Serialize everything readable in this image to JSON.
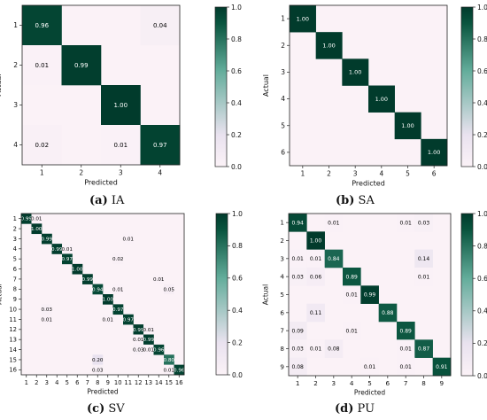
{
  "colormap": {
    "zero": "#fbf2f7",
    "low": "#e9e2ef",
    "mid": "#63ad9b",
    "high": "#09543e",
    "max": "#013b2c",
    "diag_text": "#ffffff",
    "off_text": "#000000"
  },
  "chart_data": [
    {
      "id": "IA",
      "type": "heatmap",
      "caption_label": "(a)",
      "caption_text": "IA",
      "xlabel": "Predicted",
      "ylabel": "Actual",
      "classes": [
        "1",
        "2",
        "3",
        "4"
      ],
      "colorbar_ticks": [
        "0.0",
        "0.2",
        "0.4",
        "0.6",
        "0.8",
        "1.0"
      ],
      "vmin": 0,
      "vmax": 1,
      "cells": [
        {
          "r": 0,
          "c": 0,
          "v": 0.96,
          "label": "0.96"
        },
        {
          "r": 0,
          "c": 3,
          "v": 0.04,
          "label": "0.04"
        },
        {
          "r": 1,
          "c": 0,
          "v": 0.01,
          "label": "0.01"
        },
        {
          "r": 1,
          "c": 1,
          "v": 0.99,
          "label": "0.99"
        },
        {
          "r": 2,
          "c": 2,
          "v": 1.0,
          "label": "1.00"
        },
        {
          "r": 3,
          "c": 0,
          "v": 0.02,
          "label": "0.02"
        },
        {
          "r": 3,
          "c": 2,
          "v": 0.01,
          "label": "0.01"
        },
        {
          "r": 3,
          "c": 3,
          "v": 0.97,
          "label": "0.97"
        }
      ]
    },
    {
      "id": "SA",
      "type": "heatmap",
      "caption_label": "(b)",
      "caption_text": "SA",
      "xlabel": "Predicted",
      "ylabel": "Actual",
      "classes": [
        "1",
        "2",
        "3",
        "4",
        "5",
        "6"
      ],
      "colorbar_ticks": [
        "0.0",
        "0.2",
        "0.4",
        "0.6",
        "0.8",
        "1.0"
      ],
      "vmin": 0,
      "vmax": 1,
      "cells": [
        {
          "r": 0,
          "c": 0,
          "v": 1.0,
          "label": "1.00"
        },
        {
          "r": 1,
          "c": 1,
          "v": 1.0,
          "label": "1.00"
        },
        {
          "r": 2,
          "c": 2,
          "v": 1.0,
          "label": "1.00"
        },
        {
          "r": 3,
          "c": 3,
          "v": 1.0,
          "label": "1.00"
        },
        {
          "r": 4,
          "c": 4,
          "v": 1.0,
          "label": "1.00"
        },
        {
          "r": 5,
          "c": 5,
          "v": 1.0,
          "label": "1.00"
        }
      ]
    },
    {
      "id": "SV",
      "type": "heatmap",
      "caption_label": "(c)",
      "caption_text": "SV",
      "xlabel": "Predicted",
      "ylabel": "Actual",
      "classes": [
        "1",
        "2",
        "3",
        "4",
        "5",
        "6",
        "7",
        "8",
        "9",
        "10",
        "11",
        "12",
        "13",
        "14",
        "15",
        "16"
      ],
      "colorbar_ticks": [
        "0.0",
        "0.2",
        "0.4",
        "0.6",
        "0.8",
        "1.0"
      ],
      "vmin": 0,
      "vmax": 1,
      "cells": [
        {
          "r": 0,
          "c": 0,
          "v": 0.99,
          "label": "0.99"
        },
        {
          "r": 0,
          "c": 1,
          "v": 0.01,
          "label": "0.01"
        },
        {
          "r": 1,
          "c": 1,
          "v": 1.0,
          "label": "1.00"
        },
        {
          "r": 2,
          "c": 2,
          "v": 0.99,
          "label": "0.99"
        },
        {
          "r": 2,
          "c": 10,
          "v": 0.01,
          "label": "0.01"
        },
        {
          "r": 3,
          "c": 3,
          "v": 0.99,
          "label": "0.99"
        },
        {
          "r": 3,
          "c": 4,
          "v": 0.01,
          "label": "0.01"
        },
        {
          "r": 4,
          "c": 4,
          "v": 0.97,
          "label": "0.97"
        },
        {
          "r": 4,
          "c": 9,
          "v": 0.02,
          "label": "0.02"
        },
        {
          "r": 5,
          "c": 5,
          "v": 1.0,
          "label": "1.00"
        },
        {
          "r": 6,
          "c": 6,
          "v": 0.99,
          "label": "0.99"
        },
        {
          "r": 6,
          "c": 13,
          "v": 0.01,
          "label": "0.01"
        },
        {
          "r": 7,
          "c": 7,
          "v": 0.94,
          "label": "0.94"
        },
        {
          "r": 7,
          "c": 9,
          "v": 0.01,
          "label": "0.01"
        },
        {
          "r": 7,
          "c": 14,
          "v": 0.05,
          "label": "0.05"
        },
        {
          "r": 8,
          "c": 8,
          "v": 1.0,
          "label": "1.00"
        },
        {
          "r": 9,
          "c": 2,
          "v": 0.03,
          "label": "0.03"
        },
        {
          "r": 9,
          "c": 9,
          "v": 0.97,
          "label": "0.97"
        },
        {
          "r": 10,
          "c": 2,
          "v": 0.01,
          "label": "0.01"
        },
        {
          "r": 10,
          "c": 8,
          "v": 0.01,
          "label": "0.01"
        },
        {
          "r": 10,
          "c": 10,
          "v": 0.97,
          "label": "0.97"
        },
        {
          "r": 11,
          "c": 11,
          "v": 0.99,
          "label": "0.99"
        },
        {
          "r": 11,
          "c": 12,
          "v": 0.01,
          "label": "0.01"
        },
        {
          "r": 12,
          "c": 11,
          "v": 0.01,
          "label": "0.01"
        },
        {
          "r": 12,
          "c": 12,
          "v": 0.99,
          "label": "0.99"
        },
        {
          "r": 13,
          "c": 11,
          "v": 0.03,
          "label": "0.03"
        },
        {
          "r": 13,
          "c": 12,
          "v": 0.01,
          "label": "0.01"
        },
        {
          "r": 13,
          "c": 13,
          "v": 0.96,
          "label": "0.96"
        },
        {
          "r": 14,
          "c": 7,
          "v": 0.2,
          "label": "0.20"
        },
        {
          "r": 14,
          "c": 14,
          "v": 0.8,
          "label": "0.80"
        },
        {
          "r": 15,
          "c": 7,
          "v": 0.03,
          "label": "0.03"
        },
        {
          "r": 15,
          "c": 14,
          "v": 0.01,
          "label": "0.01"
        },
        {
          "r": 15,
          "c": 15,
          "v": 0.96,
          "label": "0.96"
        }
      ]
    },
    {
      "id": "PU",
      "type": "heatmap",
      "caption_label": "(d)",
      "caption_text": "PU",
      "xlabel": "Predicted",
      "ylabel": "Actual",
      "classes": [
        "1",
        "2",
        "3",
        "4",
        "5",
        "6",
        "7",
        "8",
        "9"
      ],
      "colorbar_ticks": [
        "0.0",
        "0.2",
        "0.4",
        "0.6",
        "0.8",
        "1.0"
      ],
      "vmin": 0,
      "vmax": 1,
      "cells": [
        {
          "r": 0,
          "c": 0,
          "v": 0.94,
          "label": "0.94"
        },
        {
          "r": 0,
          "c": 2,
          "v": 0.01,
          "label": "0.01"
        },
        {
          "r": 0,
          "c": 6,
          "v": 0.01,
          "label": "0.01"
        },
        {
          "r": 0,
          "c": 7,
          "v": 0.03,
          "label": "0.03"
        },
        {
          "r": 1,
          "c": 1,
          "v": 1.0,
          "label": "1.00"
        },
        {
          "r": 2,
          "c": 0,
          "v": 0.01,
          "label": "0.01"
        },
        {
          "r": 2,
          "c": 1,
          "v": 0.01,
          "label": "0.01"
        },
        {
          "r": 2,
          "c": 2,
          "v": 0.84,
          "label": "0.84"
        },
        {
          "r": 2,
          "c": 7,
          "v": 0.14,
          "label": "0.14"
        },
        {
          "r": 3,
          "c": 0,
          "v": 0.03,
          "label": "0.03"
        },
        {
          "r": 3,
          "c": 1,
          "v": 0.06,
          "label": "0.06"
        },
        {
          "r": 3,
          "c": 3,
          "v": 0.89,
          "label": "0.89"
        },
        {
          "r": 3,
          "c": 7,
          "v": 0.01,
          "label": "0.01"
        },
        {
          "r": 4,
          "c": 3,
          "v": 0.01,
          "label": "0.01"
        },
        {
          "r": 4,
          "c": 4,
          "v": 0.99,
          "label": "0.99"
        },
        {
          "r": 5,
          "c": 1,
          "v": 0.11,
          "label": "0.11"
        },
        {
          "r": 5,
          "c": 5,
          "v": 0.88,
          "label": "0.88"
        },
        {
          "r": 6,
          "c": 0,
          "v": 0.09,
          "label": "0.09"
        },
        {
          "r": 6,
          "c": 3,
          "v": 0.01,
          "label": "0.01"
        },
        {
          "r": 6,
          "c": 6,
          "v": 0.89,
          "label": "0.89"
        },
        {
          "r": 7,
          "c": 0,
          "v": 0.03,
          "label": "0.03"
        },
        {
          "r": 7,
          "c": 1,
          "v": 0.01,
          "label": "0.01"
        },
        {
          "r": 7,
          "c": 2,
          "v": 0.08,
          "label": "0.08"
        },
        {
          "r": 7,
          "c": 6,
          "v": 0.01,
          "label": "0.01"
        },
        {
          "r": 7,
          "c": 7,
          "v": 0.87,
          "label": "0.87"
        },
        {
          "r": 8,
          "c": 0,
          "v": 0.08,
          "label": "0.08"
        },
        {
          "r": 8,
          "c": 4,
          "v": 0.01,
          "label": "0.01"
        },
        {
          "r": 8,
          "c": 6,
          "v": 0.01,
          "label": "0.01"
        },
        {
          "r": 8,
          "c": 8,
          "v": 0.91,
          "label": "0.91"
        }
      ]
    }
  ]
}
